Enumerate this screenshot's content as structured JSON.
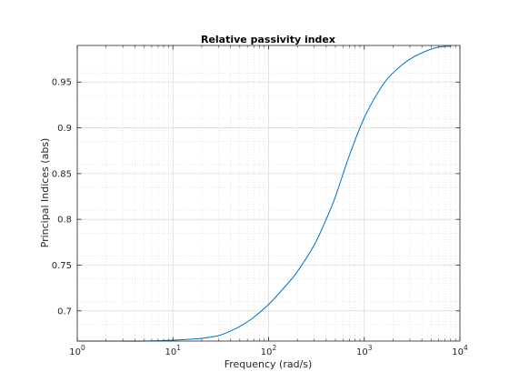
{
  "chart_data": {
    "type": "line",
    "title": "Relative passivity index",
    "xlabel": "Frequency (rad/s)",
    "ylabel": "Principal Indices (abs)",
    "x_scale": "log",
    "xlim": [
      1,
      10000
    ],
    "ylim": [
      0.667,
      0.99
    ],
    "x_ticks": [
      {
        "value": 1,
        "base": "10",
        "exp": "0"
      },
      {
        "value": 10,
        "base": "10",
        "exp": "1"
      },
      {
        "value": 100,
        "base": "10",
        "exp": "2"
      },
      {
        "value": 1000,
        "base": "10",
        "exp": "3"
      },
      {
        "value": 10000,
        "base": "10",
        "exp": "4"
      }
    ],
    "y_ticks": [
      {
        "value": 0.7,
        "label": "0.7"
      },
      {
        "value": 0.75,
        "label": "0.75"
      },
      {
        "value": 0.8,
        "label": "0.8"
      },
      {
        "value": 0.85,
        "label": "0.85"
      },
      {
        "value": 0.9,
        "label": "0.9"
      },
      {
        "value": 0.95,
        "label": "0.95"
      }
    ],
    "grid": true,
    "minor_grid": true,
    "series": [
      {
        "color": "#0072bd",
        "x": [
          1,
          2,
          5,
          10,
          15,
          20,
          30,
          40,
          50,
          70,
          100,
          150,
          200,
          300,
          400,
          500,
          700,
          1000,
          1500,
          2000,
          3000,
          5000,
          7000,
          8000
        ],
        "y": [
          0.667,
          0.667,
          0.667,
          0.668,
          0.669,
          0.67,
          0.673,
          0.678,
          0.683,
          0.693,
          0.707,
          0.727,
          0.743,
          0.772,
          0.8,
          0.825,
          0.87,
          0.911,
          0.944,
          0.96,
          0.975,
          0.986,
          0.989,
          0.989
        ]
      }
    ]
  }
}
